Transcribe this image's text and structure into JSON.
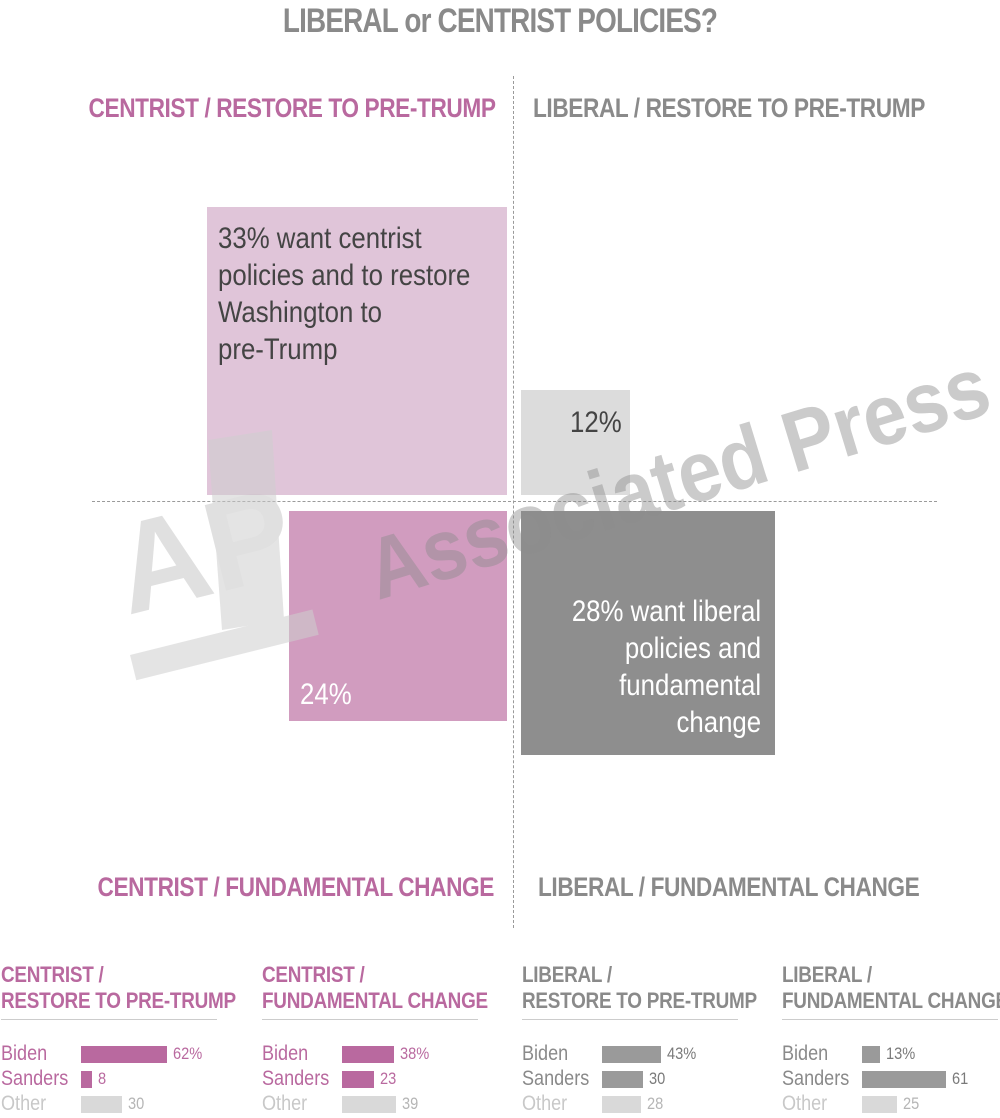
{
  "title": "LIBERAL or CENTRIST POLICIES?",
  "watermark": {
    "logo": "AP",
    "text": "Associated Press"
  },
  "colors": {
    "centrist_dark": "#b9699f",
    "centrist_mid": "#d19cbf",
    "centrist_light": "#e0c5d9",
    "liberal_dark": "#8e8e8e",
    "liberal_bar": "#9a9a9a",
    "liberal_light": "#dcdcdc",
    "other_bar": "#d9d9d9",
    "gray_text": "#8a8a8a"
  },
  "quadrants": {
    "top_left": {
      "label": "CENTRIST / RESTORE TO PRE-TRUMP",
      "text": [
        "33% want centrist",
        "policies and to restore",
        "Washington to",
        "pre-Trump"
      ]
    },
    "top_right": {
      "label": "LIBERAL / RESTORE TO PRE-TRUMP",
      "text": [
        "12%"
      ]
    },
    "bottom_left": {
      "label": "CENTRIST / FUNDAMENTAL CHANGE",
      "text": [
        "24%"
      ]
    },
    "bottom_right": {
      "label": "LIBERAL / FUNDAMENTAL CHANGE",
      "text": [
        "28% want liberal",
        "policies and",
        "fundamental",
        "change"
      ]
    }
  },
  "chart_data": [
    {
      "type": "bar",
      "quadrant_shares": {
        "CENTRIST / RESTORE TO PRE-TRUMP": 33,
        "LIBERAL / RESTORE TO PRE-TRUMP": 12,
        "CENTRIST / FUNDAMENTAL CHANGE": 24,
        "LIBERAL / FUNDAMENTAL CHANGE": 28
      },
      "unit": "%"
    },
    {
      "type": "bar",
      "title": [
        "CENTRIST /",
        "RESTORE TO PRE-TRUMP"
      ],
      "categories": [
        "Biden",
        "Sanders",
        "Other"
      ],
      "values": [
        62,
        8,
        30
      ],
      "labels": [
        "62%",
        "8",
        "30"
      ]
    },
    {
      "type": "bar",
      "title": [
        "CENTRIST /",
        "FUNDAMENTAL CHANGE"
      ],
      "categories": [
        "Biden",
        "Sanders",
        "Other"
      ],
      "values": [
        38,
        23,
        39
      ],
      "labels": [
        "38%",
        "23",
        "39"
      ]
    },
    {
      "type": "bar",
      "title": [
        "LIBERAL /",
        "RESTORE TO PRE-TRUMP"
      ],
      "categories": [
        "Biden",
        "Sanders",
        "Other"
      ],
      "values": [
        43,
        30,
        28
      ],
      "labels": [
        "43%",
        "30",
        "28"
      ]
    },
    {
      "type": "bar",
      "title": [
        "LIBERAL /",
        "FUNDAMENTAL CHANGE"
      ],
      "categories": [
        "Biden",
        "Sanders",
        "Other"
      ],
      "values": [
        13,
        61,
        25
      ],
      "labels": [
        "13%",
        "61",
        "25"
      ]
    }
  ]
}
